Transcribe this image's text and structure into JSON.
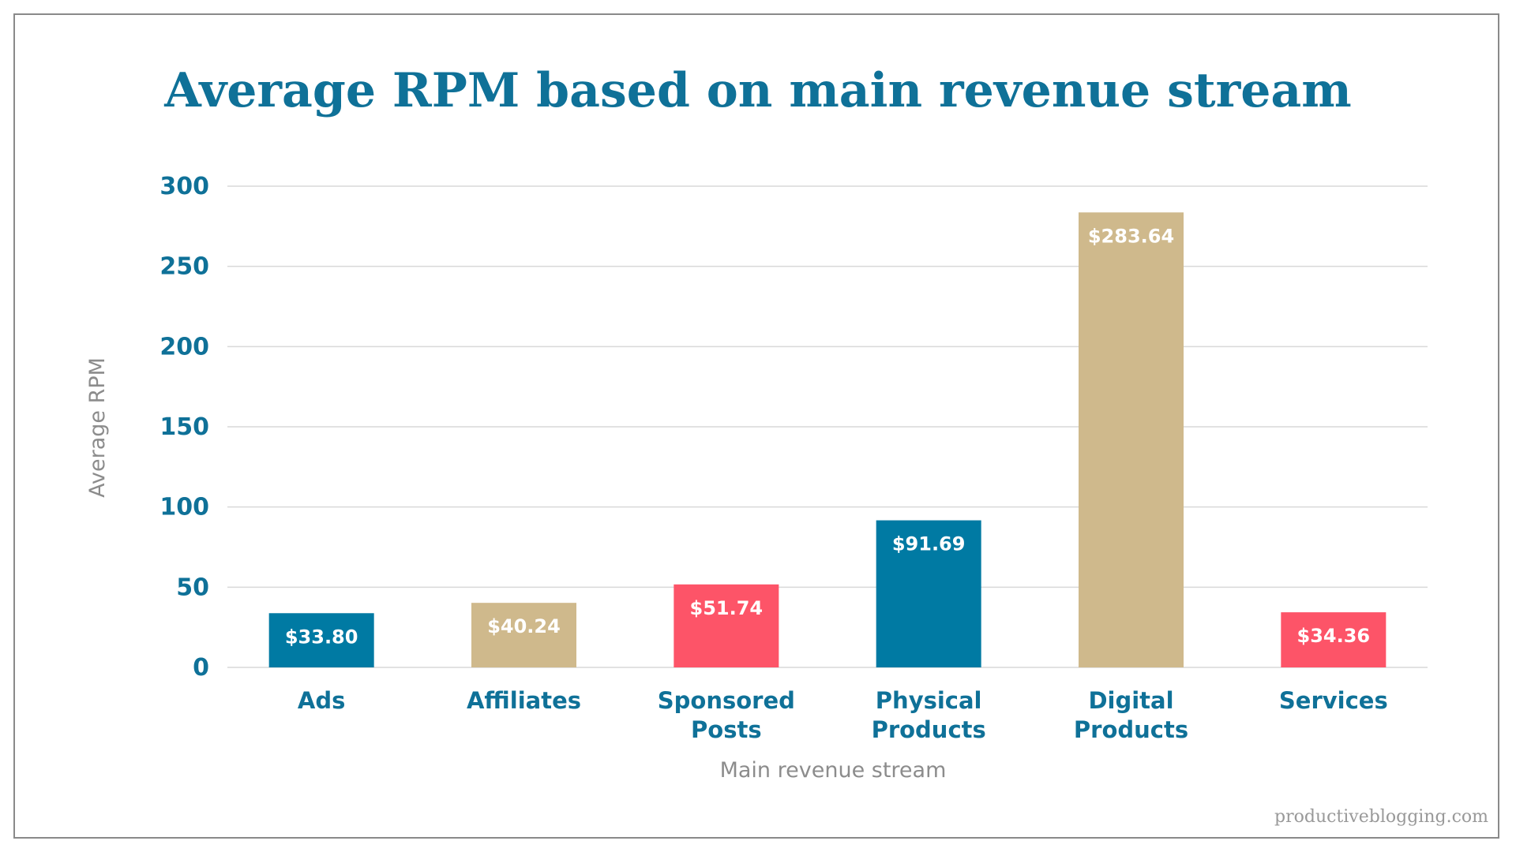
{
  "chart_data": {
    "type": "bar",
    "title": "Average RPM based on main revenue stream",
    "xlabel": "Main revenue stream",
    "ylabel": "Average RPM",
    "categories": [
      [
        "Ads"
      ],
      [
        "Affiliates"
      ],
      [
        "Sponsored",
        "Posts"
      ],
      [
        "Physical",
        "Products"
      ],
      [
        "Digital",
        "Products"
      ],
      [
        "Services"
      ]
    ],
    "values": [
      33.8,
      40.24,
      51.74,
      91.69,
      283.64,
      34.36
    ],
    "data_labels": [
      "$33.80",
      "$40.24",
      "$51.74",
      "$91.69",
      "$283.64",
      "$34.36"
    ],
    "bar_colors": [
      "#007aa3",
      "#cfb98c",
      "#fd5468",
      "#007aa3",
      "#cfb98c",
      "#fd5468"
    ],
    "ylim": [
      0,
      300
    ],
    "yticks": [
      0,
      50,
      100,
      150,
      200,
      250,
      300
    ],
    "grid": true,
    "legend": "none"
  },
  "colors": {
    "title": "#0f7198",
    "tick_label": "#0f7198",
    "axis_title": "#8c8c8c",
    "gridline": "#d9d9d9",
    "data_label": "#ffffff"
  },
  "watermark": "productiveblogging.com"
}
